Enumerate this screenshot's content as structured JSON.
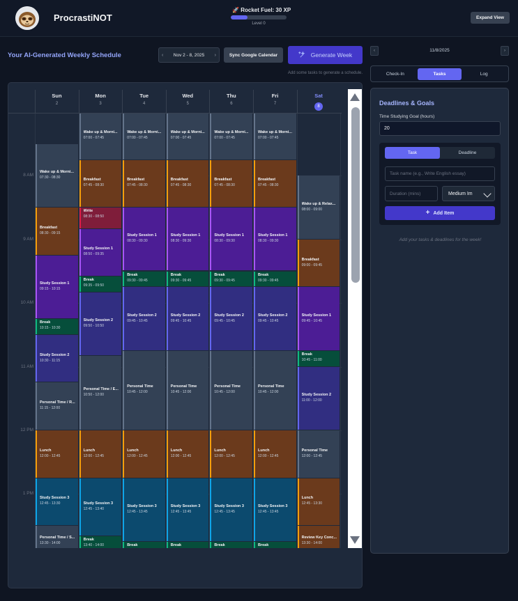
{
  "header": {
    "app_title": "ProcrastiNOT",
    "xp_label": "Rocket Fuel: 30 XP",
    "xp_fraction": 0.3,
    "level_label": "Level 0",
    "expand_label": "Expand View"
  },
  "toolbar": {
    "title": "Your AI-Generated Weekly Schedule",
    "week_range": "Nov 2 - 8, 2025",
    "sync_label": "Sync Google Calendar",
    "generate_label": "Generate Week",
    "hint": "Add some tasks to generate a schedule."
  },
  "calendar": {
    "days": [
      {
        "name": "Sun",
        "date": "2"
      },
      {
        "name": "Mon",
        "date": "3"
      },
      {
        "name": "Tue",
        "date": "4"
      },
      {
        "name": "Wed",
        "date": "5"
      },
      {
        "name": "Thu",
        "date": "6"
      },
      {
        "name": "Fri",
        "date": "7"
      },
      {
        "name": "Sat",
        "date": "8"
      }
    ],
    "today_index": 6,
    "hour_labels": [
      "7 AM",
      "8 AM",
      "9 AM",
      "10 AM",
      "11 AM",
      "12 PM",
      "1 PM"
    ],
    "events": [
      {
        "day": 0,
        "title": "Wake up & Morni...",
        "time": "07:30 - 08:30",
        "start": 7.5,
        "end": 8.5,
        "kind": "routine"
      },
      {
        "day": 0,
        "title": "Breakfast",
        "time": "08:30 - 09:15",
        "start": 8.5,
        "end": 9.25,
        "kind": "meal"
      },
      {
        "day": 0,
        "title": "Study Session 1",
        "time": "09:15 - 10:15",
        "start": 9.25,
        "end": 10.25,
        "kind": "study1"
      },
      {
        "day": 0,
        "title": "Break",
        "time": "10:15 - 10:30",
        "start": 10.25,
        "end": 10.5,
        "kind": "break"
      },
      {
        "day": 0,
        "title": "Study Session 2",
        "time": "10:30 - 11:15",
        "start": 10.5,
        "end": 11.25,
        "kind": "study2"
      },
      {
        "day": 0,
        "title": "Personal Time / R...",
        "time": "11:15 - 12:00",
        "start": 11.25,
        "end": 12,
        "kind": "routine"
      },
      {
        "day": 0,
        "title": "Lunch",
        "time": "12:00 - 12:45",
        "start": 12,
        "end": 12.75,
        "kind": "meal"
      },
      {
        "day": 0,
        "title": "Study Session 3",
        "time": "12:45 - 13:30",
        "start": 12.75,
        "end": 13.5,
        "kind": "study3"
      },
      {
        "day": 0,
        "title": "Personal Time / S...",
        "time": "13:30 - 14:00",
        "start": 13.5,
        "end": 14,
        "kind": "routine"
      },
      {
        "day": 1,
        "title": "Wake up & Morni...",
        "time": "07:00 - 07:45",
        "start": 7,
        "end": 7.75,
        "kind": "routine"
      },
      {
        "day": 1,
        "title": "Breakfast",
        "time": "07:45 - 08:30",
        "start": 7.75,
        "end": 8.5,
        "kind": "meal"
      },
      {
        "day": 1,
        "title": "Write",
        "time": "08:30 - 08:50",
        "start": 8.5,
        "end": 8.833,
        "kind": "write"
      },
      {
        "day": 1,
        "title": "Study Session 1",
        "time": "08:50 - 09:35",
        "start": 8.833,
        "end": 9.583,
        "kind": "study1"
      },
      {
        "day": 1,
        "title": "Break",
        "time": "09:35 - 09:50",
        "start": 9.583,
        "end": 9.833,
        "kind": "break"
      },
      {
        "day": 1,
        "title": "Study Session 2",
        "time": "09:50 - 10:50",
        "start": 9.833,
        "end": 10.833,
        "kind": "study2"
      },
      {
        "day": 1,
        "title": "Personal Time / E...",
        "time": "10:50 - 12:00",
        "start": 10.833,
        "end": 12,
        "kind": "routine"
      },
      {
        "day": 1,
        "title": "Lunch",
        "time": "12:00 - 12:45",
        "start": 12,
        "end": 12.75,
        "kind": "meal"
      },
      {
        "day": 1,
        "title": "Study Session 3",
        "time": "12:45 - 13:40",
        "start": 12.75,
        "end": 13.667,
        "kind": "study3"
      },
      {
        "day": 1,
        "title": "Break",
        "time": "13:40 - 14:00",
        "start": 13.667,
        "end": 14,
        "kind": "break"
      },
      {
        "day": 2,
        "title": "Wake up & Morni...",
        "time": "07:00 - 07:45",
        "start": 7,
        "end": 7.75,
        "kind": "routine"
      },
      {
        "day": 2,
        "title": "Breakfast",
        "time": "07:45 - 08:30",
        "start": 7.75,
        "end": 8.5,
        "kind": "meal"
      },
      {
        "day": 2,
        "title": "Study Session 1",
        "time": "08:30 - 09:30",
        "start": 8.5,
        "end": 9.5,
        "kind": "study1"
      },
      {
        "day": 2,
        "title": "Break",
        "time": "09:30 - 09:45",
        "start": 9.5,
        "end": 9.75,
        "kind": "break"
      },
      {
        "day": 2,
        "title": "Study Session 2",
        "time": "09:45 - 10:45",
        "start": 9.75,
        "end": 10.75,
        "kind": "study2"
      },
      {
        "day": 2,
        "title": "Personal Time",
        "time": "10:45 - 12:00",
        "start": 10.75,
        "end": 12,
        "kind": "routine"
      },
      {
        "day": 2,
        "title": "Lunch",
        "time": "12:00 - 12:45",
        "start": 12,
        "end": 12.75,
        "kind": "meal"
      },
      {
        "day": 2,
        "title": "Study Session 3",
        "time": "12:45 - 13:45",
        "start": 12.75,
        "end": 13.75,
        "kind": "study3"
      },
      {
        "day": 2,
        "title": "Break",
        "time": "",
        "start": 13.75,
        "end": 14,
        "kind": "break"
      },
      {
        "day": 3,
        "title": "Wake up & Morni...",
        "time": "07:00 - 07:45",
        "start": 7,
        "end": 7.75,
        "kind": "routine"
      },
      {
        "day": 3,
        "title": "Breakfast",
        "time": "07:45 - 08:30",
        "start": 7.75,
        "end": 8.5,
        "kind": "meal"
      },
      {
        "day": 3,
        "title": "Study Session 1",
        "time": "08:30 - 09:30",
        "start": 8.5,
        "end": 9.5,
        "kind": "study1"
      },
      {
        "day": 3,
        "title": "Break",
        "time": "09:30 - 09:45",
        "start": 9.5,
        "end": 9.75,
        "kind": "break"
      },
      {
        "day": 3,
        "title": "Study Session 2",
        "time": "09:45 - 10:45",
        "start": 9.75,
        "end": 10.75,
        "kind": "study2"
      },
      {
        "day": 3,
        "title": "Personal Time",
        "time": "10:45 - 12:00",
        "start": 10.75,
        "end": 12,
        "kind": "routine"
      },
      {
        "day": 3,
        "title": "Lunch",
        "time": "12:00 - 12:45",
        "start": 12,
        "end": 12.75,
        "kind": "meal"
      },
      {
        "day": 3,
        "title": "Study Session 3",
        "time": "12:45 - 13:45",
        "start": 12.75,
        "end": 13.75,
        "kind": "study3"
      },
      {
        "day": 3,
        "title": "Break",
        "time": "",
        "start": 13.75,
        "end": 14,
        "kind": "break"
      },
      {
        "day": 4,
        "title": "Wake up & Morni...",
        "time": "07:00 - 07:45",
        "start": 7,
        "end": 7.75,
        "kind": "routine"
      },
      {
        "day": 4,
        "title": "Breakfast",
        "time": "07:45 - 08:30",
        "start": 7.75,
        "end": 8.5,
        "kind": "meal"
      },
      {
        "day": 4,
        "title": "Study Session 1",
        "time": "08:30 - 09:30",
        "start": 8.5,
        "end": 9.5,
        "kind": "study1"
      },
      {
        "day": 4,
        "title": "Break",
        "time": "09:30 - 09:45",
        "start": 9.5,
        "end": 9.75,
        "kind": "break"
      },
      {
        "day": 4,
        "title": "Study Session 2",
        "time": "09:45 - 10:45",
        "start": 9.75,
        "end": 10.75,
        "kind": "study2"
      },
      {
        "day": 4,
        "title": "Personal Time",
        "time": "10:45 - 12:00",
        "start": 10.75,
        "end": 12,
        "kind": "routine"
      },
      {
        "day": 4,
        "title": "Lunch",
        "time": "12:00 - 12:45",
        "start": 12,
        "end": 12.75,
        "kind": "meal"
      },
      {
        "day": 4,
        "title": "Study Session 3",
        "time": "12:45 - 13:45",
        "start": 12.75,
        "end": 13.75,
        "kind": "study3"
      },
      {
        "day": 4,
        "title": "Break",
        "time": "",
        "start": 13.75,
        "end": 14,
        "kind": "break"
      },
      {
        "day": 5,
        "title": "Wake up & Morni...",
        "time": "07:00 - 07:45",
        "start": 7,
        "end": 7.75,
        "kind": "routine"
      },
      {
        "day": 5,
        "title": "Breakfast",
        "time": "07:45 - 08:30",
        "start": 7.75,
        "end": 8.5,
        "kind": "meal"
      },
      {
        "day": 5,
        "title": "Study Session 1",
        "time": "08:30 - 09:30",
        "start": 8.5,
        "end": 9.5,
        "kind": "study1"
      },
      {
        "day": 5,
        "title": "Break",
        "time": "09:30 - 09:45",
        "start": 9.5,
        "end": 9.75,
        "kind": "break"
      },
      {
        "day": 5,
        "title": "Study Session 2",
        "time": "09:45 - 10:45",
        "start": 9.75,
        "end": 10.75,
        "kind": "study2"
      },
      {
        "day": 5,
        "title": "Personal Time",
        "time": "10:45 - 12:00",
        "start": 10.75,
        "end": 12,
        "kind": "routine"
      },
      {
        "day": 5,
        "title": "Lunch",
        "time": "12:00 - 12:45",
        "start": 12,
        "end": 12.75,
        "kind": "meal"
      },
      {
        "day": 5,
        "title": "Study Session 3",
        "time": "12:45 - 13:45",
        "start": 12.75,
        "end": 13.75,
        "kind": "study3"
      },
      {
        "day": 5,
        "title": "Break",
        "time": "",
        "start": 13.75,
        "end": 14,
        "kind": "break"
      },
      {
        "day": 6,
        "title": "Wake up & Relax...",
        "time": "08:00 - 09:00",
        "start": 8,
        "end": 9,
        "kind": "routine"
      },
      {
        "day": 6,
        "title": "Breakfast",
        "time": "09:00 - 09:45",
        "start": 9,
        "end": 9.75,
        "kind": "meal"
      },
      {
        "day": 6,
        "title": "Study Session 1",
        "time": "09:45 - 10:45",
        "start": 9.75,
        "end": 10.75,
        "kind": "study1"
      },
      {
        "day": 6,
        "title": "Break",
        "time": "10:45 - 11:00",
        "start": 10.75,
        "end": 11,
        "kind": "break"
      },
      {
        "day": 6,
        "title": "Study Session 2",
        "time": "11:00 - 12:00",
        "start": 11,
        "end": 12,
        "kind": "study2"
      },
      {
        "day": 6,
        "title": "Personal Time",
        "time": "12:00 - 12:45",
        "start": 12,
        "end": 12.75,
        "kind": "routine"
      },
      {
        "day": 6,
        "title": "Lunch",
        "time": "12:45 - 13:30",
        "start": 12.75,
        "end": 13.5,
        "kind": "meal"
      },
      {
        "day": 6,
        "title": "Review Key Conc...",
        "time": "13:30 - 14:00",
        "start": 13.5,
        "end": 14,
        "kind": "meal"
      }
    ],
    "colors": {
      "routine": {
        "bg": "#334155",
        "border": "#64748b"
      },
      "meal": {
        "bg": "#6b3a1c",
        "border": "#f59e0b"
      },
      "study1": {
        "bg": "#4c1d95",
        "border": "#a855f7"
      },
      "study2": {
        "bg": "#312e81",
        "border": "#6366f1"
      },
      "study3": {
        "bg": "#0c4a6e",
        "border": "#0ea5e9"
      },
      "break": {
        "bg": "#064e3b",
        "border": "#10b981"
      },
      "write": {
        "bg": "#7f1d3a",
        "border": "#e11d48"
      }
    }
  },
  "sidebar": {
    "date": "11/8/2025",
    "tabs": [
      "Check-In",
      "Tasks",
      "Log"
    ],
    "active_tab": 1,
    "title": "Deadlines & Goals",
    "goal_label": "Time Studying Goal (hours)",
    "goal_value": "20",
    "segment_options": [
      "Task",
      "Deadline"
    ],
    "task_placeholder": "Task name (e.g., Write English essay)",
    "duration_placeholder": "Duration (mins)",
    "priority_value": "Medium Im",
    "add_label": "Add Item",
    "empty_message": "Add your tasks & deadlines for the week!"
  }
}
